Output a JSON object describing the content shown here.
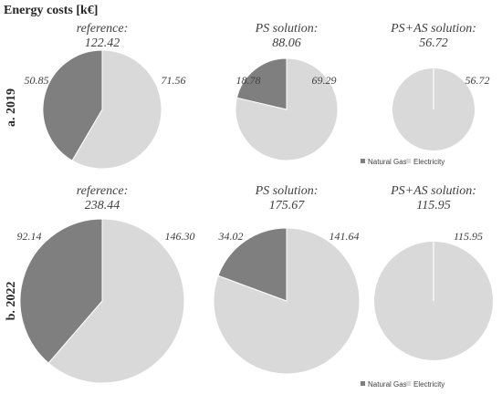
{
  "figure_title": "Energy costs [k€]",
  "colors": {
    "natural_gas": "#7f7f7f",
    "electricity": "#d9d9d9",
    "divider": "#ffffff"
  },
  "chart_data": [
    {
      "type": "pie",
      "row": "a. 2019",
      "title": "reference:",
      "total": "122.42",
      "categories": [
        "Natural Gas",
        "Electricity"
      ],
      "values": [
        50.85,
        71.56
      ],
      "value_labels": [
        "50.85",
        "71.56"
      ],
      "legend": "none"
    },
    {
      "type": "pie",
      "row": "a. 2019",
      "title": "PS solution:",
      "total": "88.06",
      "categories": [
        "Natural Gas",
        "Electricity"
      ],
      "values": [
        18.78,
        69.29
      ],
      "value_labels": [
        "18.78",
        "69.29"
      ],
      "legend": "none"
    },
    {
      "type": "pie",
      "row": "a. 2019",
      "title": "PS+AS solution:",
      "total": "56.72",
      "categories": [
        "Natural Gas",
        "Electricity"
      ],
      "values": [
        0,
        56.72
      ],
      "value_labels": [
        "",
        "56.72"
      ],
      "legend": "bottom"
    },
    {
      "type": "pie",
      "row": "b. 2022",
      "title": "reference:",
      "total": "238.44",
      "categories": [
        "Natural Gas",
        "Electricity"
      ],
      "values": [
        92.14,
        146.3
      ],
      "value_labels": [
        "92.14",
        "146.30"
      ],
      "legend": "none"
    },
    {
      "type": "pie",
      "row": "b. 2022",
      "title": "PS solution:",
      "total": "175.67",
      "categories": [
        "Natural Gas",
        "Electricity"
      ],
      "values": [
        34.02,
        141.64
      ],
      "value_labels": [
        "34.02",
        "141.64"
      ],
      "legend": "none"
    },
    {
      "type": "pie",
      "row": "b. 2022",
      "title": "PS+AS solution:",
      "total": "115.95",
      "categories": [
        "Natural Gas",
        "Electricity"
      ],
      "values": [
        0,
        115.95
      ],
      "value_labels": [
        "",
        "115.95"
      ],
      "legend": "bottom"
    }
  ]
}
